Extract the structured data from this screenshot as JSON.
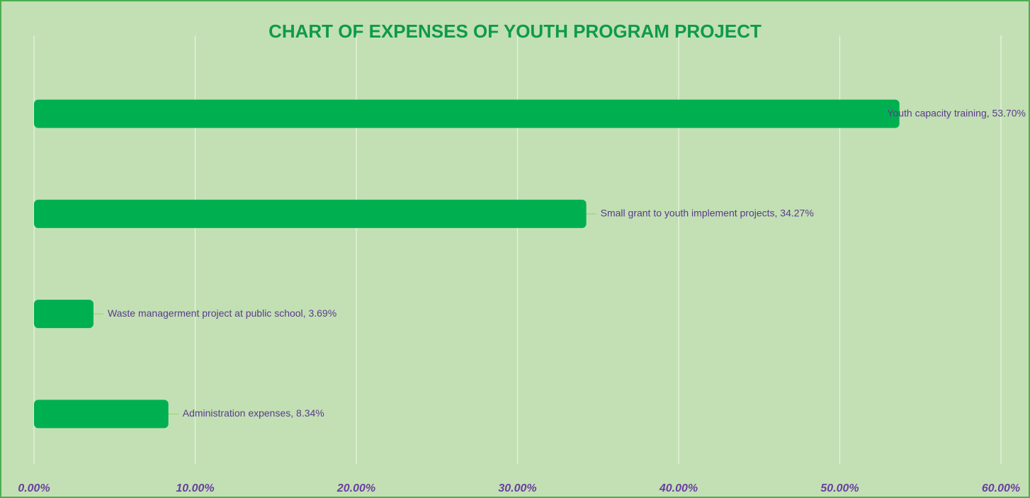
{
  "chart_data": {
    "type": "bar",
    "orientation": "horizontal",
    "title": "CHART OF EXPENSES OF YOUTH PROGRAM PROJECT",
    "values": [
      53.7,
      34.27,
      3.69,
      8.34
    ],
    "value_labels": [
      "Youth capacity training, 53.70%",
      "Small grant to youth implement projects, 34.27%",
      "Waste managerment project at public school, 3.69%",
      "Administration expenses, 8.34%"
    ],
    "color": "#00b050",
    "xlim": [
      0,
      60
    ],
    "xticks": [
      {
        "value": 0,
        "label": "0.00%"
      },
      {
        "value": 10,
        "label": "10.00%"
      },
      {
        "value": 20,
        "label": "20.00%"
      },
      {
        "value": 30,
        "label": "30.00%"
      },
      {
        "value": 40,
        "label": "40.00%"
      },
      {
        "value": 50,
        "label": "50.00%"
      },
      {
        "value": 60,
        "label": "60.00%"
      }
    ],
    "grid": true
  }
}
